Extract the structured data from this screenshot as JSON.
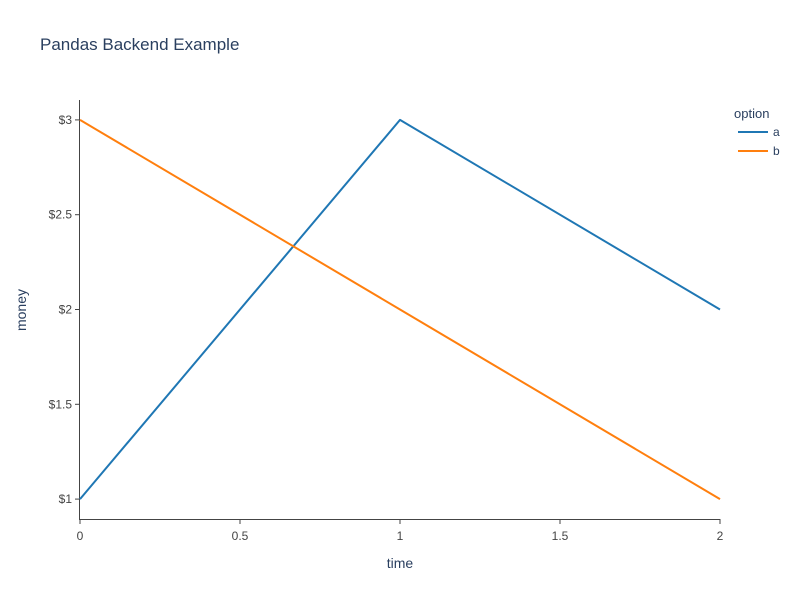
{
  "chart_data": {
    "type": "line",
    "title": "Pandas Backend Example",
    "xlabel": "time",
    "ylabel": "money",
    "x_ticks": [
      "0",
      "0.5",
      "1",
      "1.5",
      "2"
    ],
    "y_ticks": [
      "$1",
      "$1.5",
      "$2",
      "$2.5",
      "$3"
    ],
    "x_tick_values": [
      0,
      0.5,
      1,
      1.5,
      2
    ],
    "y_tick_values": [
      1,
      1.5,
      2,
      2.5,
      3
    ],
    "xlim": [
      0,
      2
    ],
    "ylim": [
      0.895,
      3.105
    ],
    "grid": false,
    "legend_title": "option",
    "legend_position": "top-right",
    "series": [
      {
        "name": "a",
        "color": "#1f77b4",
        "x": [
          0,
          1,
          2
        ],
        "y": [
          1,
          3,
          2
        ]
      },
      {
        "name": "b",
        "color": "#ff7f0e",
        "x": [
          0,
          1,
          2
        ],
        "y": [
          3,
          2,
          1
        ]
      }
    ]
  }
}
